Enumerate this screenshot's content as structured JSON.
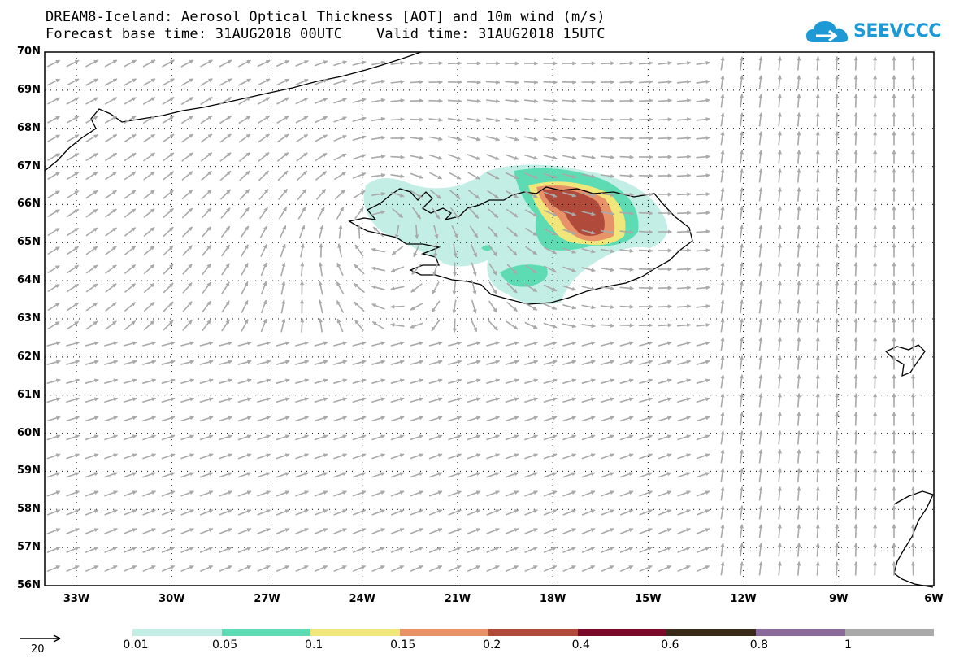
{
  "title": {
    "line1": "DREAM8-Iceland: Aerosol Optical Thickness [AOT] and 10m wind (m/s)",
    "line2": "Forecast base time: 31AUG2018 00UTC    Valid time: 31AUG2018 15UTC"
  },
  "logo": {
    "text": "SEEVCCC",
    "icon": "cloud-icon",
    "color": "#1d9ad6"
  },
  "map": {
    "lat_labels": [
      "70N",
      "69N",
      "68N",
      "67N",
      "66N",
      "65N",
      "64N",
      "63N",
      "62N",
      "61N",
      "60N",
      "59N",
      "58N",
      "57N",
      "56N"
    ],
    "lon_labels": [
      "33W",
      "30W",
      "27W",
      "24W",
      "21W",
      "18W",
      "15W",
      "12W",
      "9W",
      "6W"
    ],
    "grid": true,
    "wind_arrow_color": "#a9a9a9"
  },
  "legend": {
    "colors": [
      "#c3eee6",
      "#5ddcb4",
      "#f0e67a",
      "#e8926a",
      "#b04a3a",
      "#7a0a2a",
      "#3a2a1a",
      "#8a6a9a",
      "#a9a9a9"
    ],
    "labels": [
      "0.01",
      "0.05",
      "0.1",
      "0.15",
      "0.2",
      "0.4",
      "0.6",
      "0.8",
      "1"
    ],
    "reference_vector": "20"
  }
}
